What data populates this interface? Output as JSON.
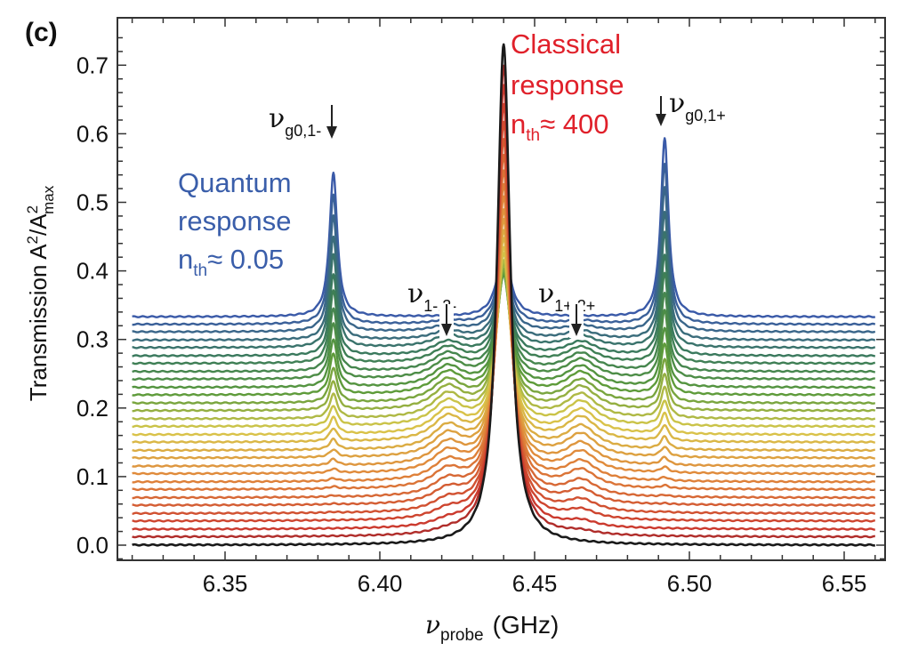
{
  "chart_data": {
    "type": "line",
    "panel_label": "(c)",
    "xlabel": {
      "symbol": "ν",
      "sub": "probe",
      "unit": "(GHz)"
    },
    "ylabel": {
      "text": "Transmission A",
      "sup1": "2",
      "mid": "/A",
      "sup2": "2",
      "sub2": "max"
    },
    "xlim": [
      6.32,
      6.563
    ],
    "ylim": [
      -0.022,
      0.769
    ],
    "xticks": [
      "6.35",
      "6.40",
      "6.45",
      "6.50",
      "6.55"
    ],
    "yticks": [
      "0.0",
      "0.1",
      "0.2",
      "0.3",
      "0.4",
      "0.5",
      "0.6",
      "0.7"
    ],
    "grid": false,
    "x_range_data": [
      6.32,
      6.56
    ],
    "peak_centers": [
      6.385,
      6.422,
      6.44,
      6.465,
      6.492
    ],
    "peak_widths": [
      0.0015,
      0.006,
      0.0025,
      0.006,
      0.0015
    ],
    "color_stops": [
      "#1a1a1a",
      "#c8302c",
      "#e0883a",
      "#d8c84a",
      "#5a9a3a",
      "#3a7a5a",
      "#3a5aa8"
    ],
    "series": [
      {
        "offset": 0.0,
        "peak_heights": [
          0,
          0,
          0.73,
          0,
          0
        ]
      },
      {
        "offset": 0.012,
        "peak_heights": [
          0,
          0.005,
          0.687,
          0.005,
          0
        ]
      },
      {
        "offset": 0.023,
        "peak_heights": [
          0,
          0.009,
          0.646,
          0.009,
          0
        ]
      },
      {
        "offset": 0.035,
        "peak_heights": [
          0,
          0.013,
          0.607,
          0.013,
          0
        ]
      },
      {
        "offset": 0.046,
        "peak_heights": [
          0.001,
          0.017,
          0.568,
          0.017,
          0.001
        ]
      },
      {
        "offset": 0.058,
        "peak_heights": [
          0.001,
          0.02,
          0.532,
          0.02,
          0.001
        ]
      },
      {
        "offset": 0.069,
        "peak_heights": [
          0.002,
          0.023,
          0.496,
          0.023,
          0.002
        ]
      },
      {
        "offset": 0.081,
        "peak_heights": [
          0.003,
          0.026,
          0.462,
          0.026,
          0.004
        ]
      },
      {
        "offset": 0.092,
        "peak_heights": [
          0.004,
          0.028,
          0.43,
          0.028,
          0.005
        ]
      },
      {
        "offset": 0.104,
        "peak_heights": [
          0.006,
          0.03,
          0.4,
          0.03,
          0.008
        ]
      },
      {
        "offset": 0.115,
        "peak_heights": [
          0.009,
          0.032,
          0.37,
          0.032,
          0.011
        ]
      },
      {
        "offset": 0.127,
        "peak_heights": [
          0.011,
          0.033,
          0.343,
          0.033,
          0.014
        ]
      },
      {
        "offset": 0.138,
        "peak_heights": [
          0.015,
          0.034,
          0.317,
          0.034,
          0.018
        ]
      },
      {
        "offset": 0.15,
        "peak_heights": [
          0.019,
          0.035,
          0.292,
          0.035,
          0.023
        ]
      },
      {
        "offset": 0.161,
        "peak_heights": [
          0.024,
          0.035,
          0.269,
          0.035,
          0.029
        ]
      },
      {
        "offset": 0.173,
        "peak_heights": [
          0.029,
          0.035,
          0.247,
          0.035,
          0.036
        ]
      },
      {
        "offset": 0.184,
        "peak_heights": [
          0.035,
          0.035,
          0.227,
          0.035,
          0.044
        ]
      },
      {
        "offset": 0.196,
        "peak_heights": [
          0.042,
          0.034,
          0.208,
          0.034,
          0.052
        ]
      },
      {
        "offset": 0.207,
        "peak_heights": [
          0.05,
          0.033,
          0.191,
          0.033,
          0.062
        ]
      },
      {
        "offset": 0.219,
        "peak_heights": [
          0.059,
          0.032,
          0.175,
          0.032,
          0.073
        ]
      },
      {
        "offset": 0.23,
        "peak_heights": [
          0.069,
          0.03,
          0.16,
          0.03,
          0.085
        ]
      },
      {
        "offset": 0.242,
        "peak_heights": [
          0.08,
          0.028,
          0.148,
          0.028,
          0.099
        ]
      },
      {
        "offset": 0.253,
        "peak_heights": [
          0.092,
          0.026,
          0.137,
          0.026,
          0.114
        ]
      },
      {
        "offset": 0.265,
        "peak_heights": [
          0.105,
          0.023,
          0.127,
          0.023,
          0.13
        ]
      },
      {
        "offset": 0.276,
        "peak_heights": [
          0.119,
          0.02,
          0.119,
          0.02,
          0.147
        ]
      },
      {
        "offset": 0.288,
        "peak_heights": [
          0.135,
          0.017,
          0.112,
          0.017,
          0.167
        ]
      },
      {
        "offset": 0.299,
        "peak_heights": [
          0.151,
          0.013,
          0.107,
          0.013,
          0.187
        ]
      },
      {
        "offset": 0.311,
        "peak_heights": [
          0.169,
          0.009,
          0.103,
          0.009,
          0.21
        ]
      },
      {
        "offset": 0.322,
        "peak_heights": [
          0.189,
          0.005,
          0.101,
          0.005,
          0.234
        ]
      },
      {
        "offset": 0.333,
        "peak_heights": [
          0.21,
          0,
          0.1,
          0,
          0.26
        ]
      }
    ],
    "annotations": {
      "g01_minus": {
        "symbol": "ν",
        "sub": "g0,1-"
      },
      "g01_plus": {
        "symbol": "ν",
        "sub": "g0,1+"
      },
      "m12_minus": {
        "symbol": "ν",
        "sub": "1-,2-"
      },
      "p12_plus": {
        "symbol": "ν",
        "sub": "1+,2+"
      },
      "quantum": {
        "line1": "Quantum",
        "line2": "response",
        "n": "n",
        "nsub": "th",
        "value": "≈ 0.05",
        "color": "#3a5eaa"
      },
      "classical": {
        "line1": "Classical",
        "line2": "response",
        "n": "n",
        "nsub": "th",
        "value": "≈ 400",
        "color": "#e0202a"
      }
    }
  }
}
